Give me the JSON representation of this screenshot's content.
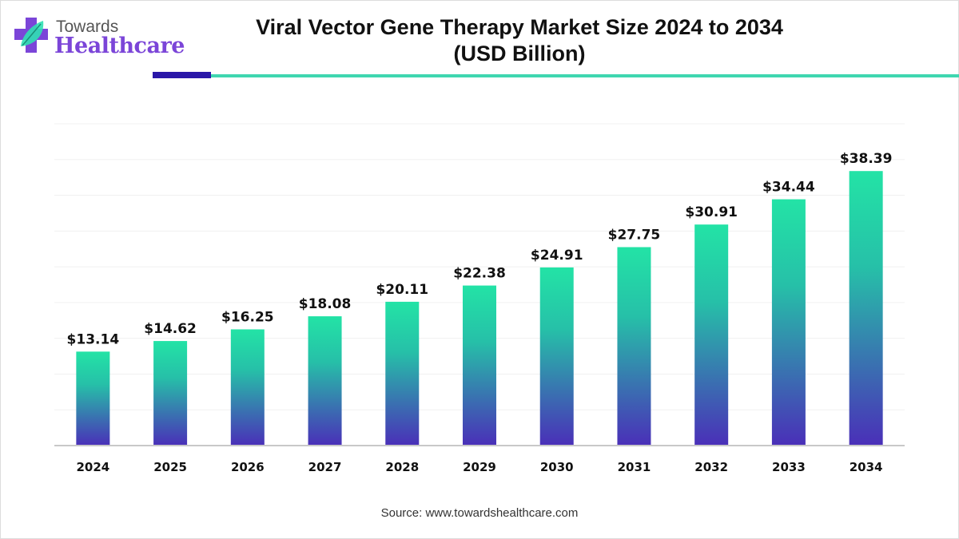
{
  "brand": {
    "line1": "Towards",
    "line2": "Healthcare"
  },
  "title_line1": "Viral Vector Gene Therapy Market Size 2024 to 2034",
  "title_line2": "(USD Billion)",
  "source": "Source: www.towardshealthcare.com",
  "colors": {
    "bar_top": "#23e3a6",
    "bar_bottom": "#4a2fb8",
    "accent_dark": "#2a17a8",
    "accent_teal": "#3fd6b0",
    "brand_purple": "#7b45d8"
  },
  "chart_data": {
    "type": "bar",
    "title": "Viral Vector Gene Therapy Market Size 2024 to 2034 (USD Billion)",
    "categories": [
      "2024",
      "2025",
      "2026",
      "2027",
      "2028",
      "2029",
      "2030",
      "2031",
      "2032",
      "2033",
      "2034"
    ],
    "values": [
      13.14,
      14.62,
      16.25,
      18.08,
      20.11,
      22.38,
      24.91,
      27.75,
      30.91,
      34.44,
      38.39
    ],
    "data_labels": [
      "$13.14",
      "$14.62",
      "$16.25",
      "$18.08",
      "$20.11",
      "$22.38",
      "$24.91",
      "$27.75",
      "$30.91",
      "$34.44",
      "$38.39"
    ],
    "ylim": [
      0,
      45
    ],
    "grid_step": 5,
    "grid": true,
    "legend": "none"
  }
}
